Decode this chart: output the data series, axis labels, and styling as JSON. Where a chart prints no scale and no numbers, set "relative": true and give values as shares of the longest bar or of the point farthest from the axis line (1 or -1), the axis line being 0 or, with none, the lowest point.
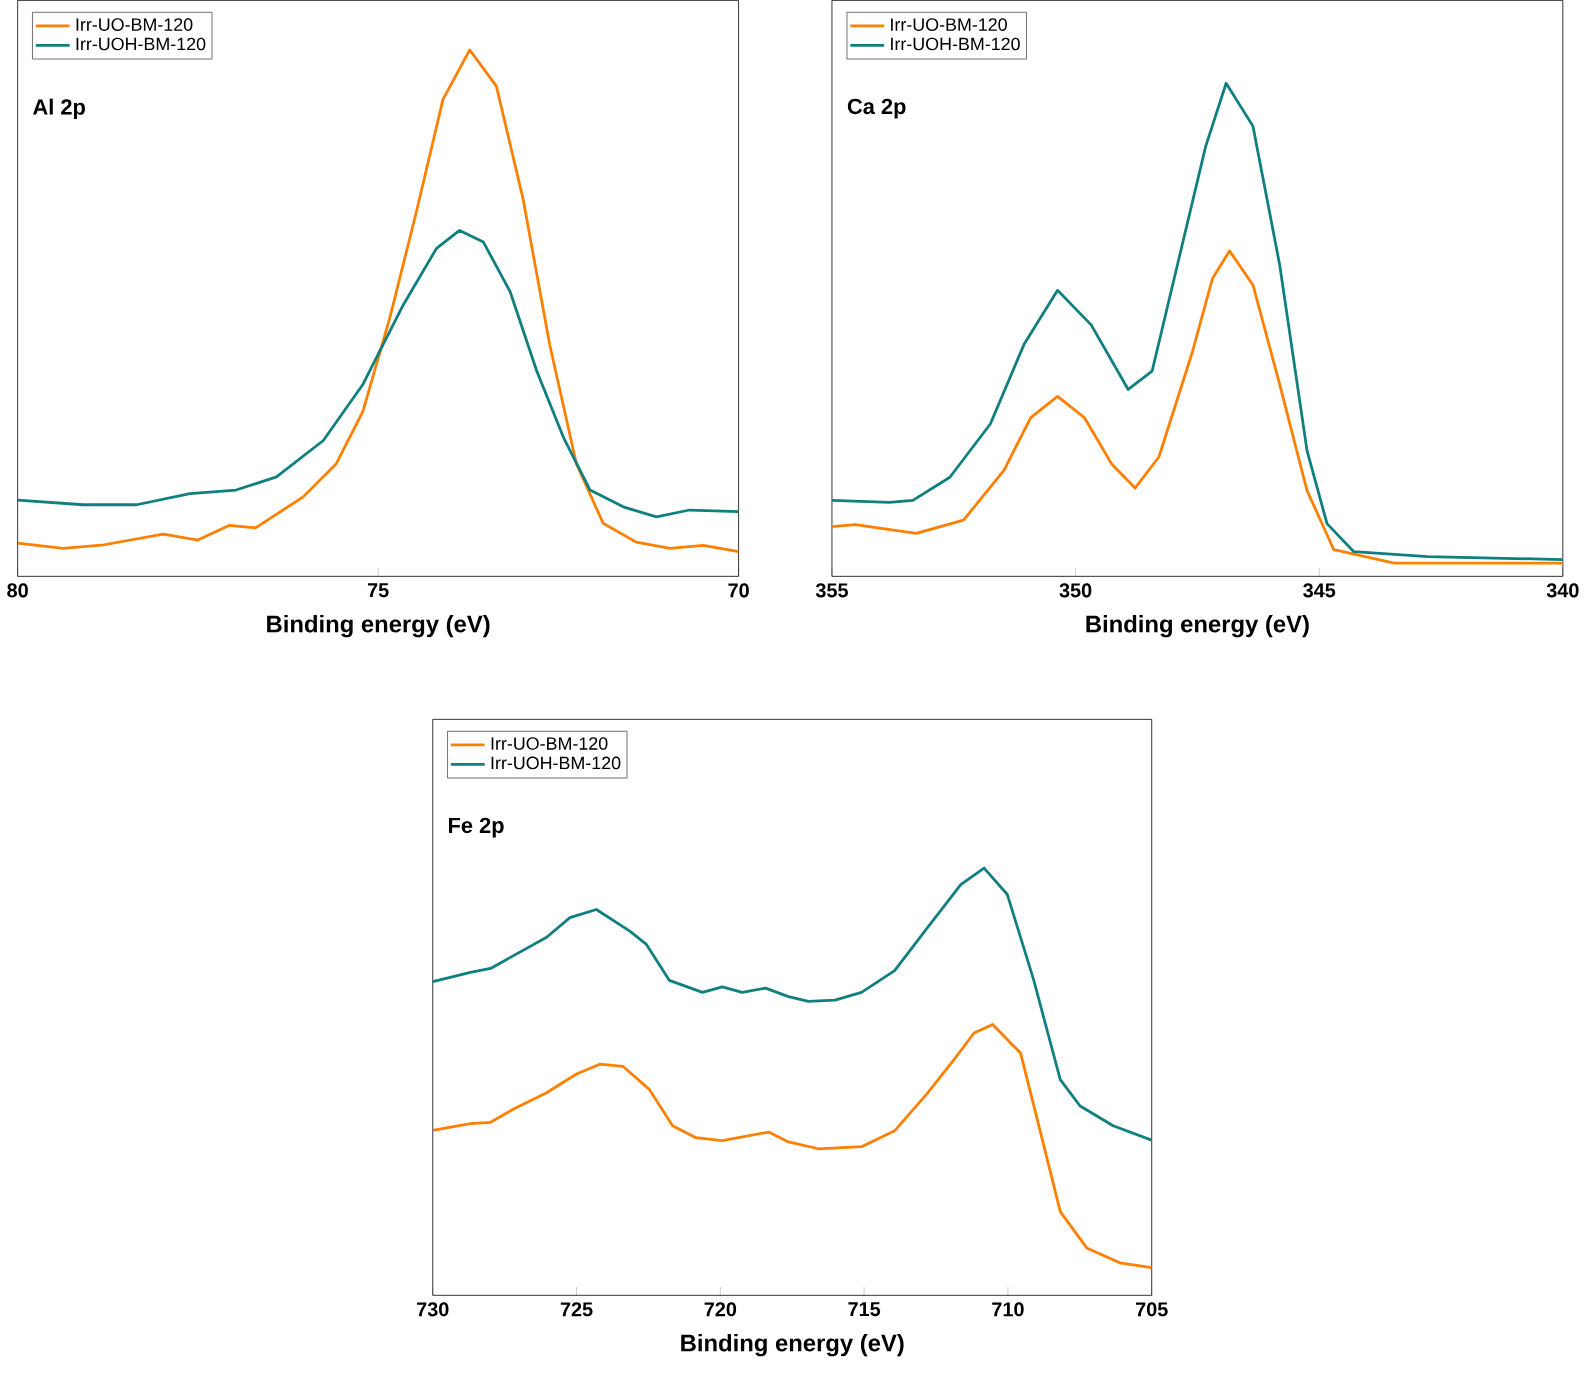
{
  "chart_data": [
    {
      "type": "line",
      "title": "Al 2p",
      "xlabel": "Binding energy (eV)",
      "xlim": [
        80,
        70
      ],
      "xticks": [
        80,
        75,
        70
      ],
      "relative": true,
      "legend": "top left",
      "grid": false,
      "marker": "none",
      "line_style": "solid",
      "series": [
        {
          "name": "Irr-UO-BM-120",
          "color": "#ff8000",
          "x": [
            80,
            79.37,
            78.8,
            77.98,
            77.5,
            77.06,
            76.7,
            76.04,
            75.58,
            75.21,
            74.84,
            74.47,
            74.1,
            73.73,
            73.36,
            72.99,
            72.62,
            72.25,
            71.88,
            71.42,
            70.95,
            70.49,
            70
          ],
          "values": [
            0.063,
            0.053,
            0.06,
            0.08,
            0.069,
            0.097,
            0.092,
            0.151,
            0.214,
            0.314,
            0.49,
            0.692,
            0.906,
            1.0,
            0.931,
            0.717,
            0.44,
            0.214,
            0.101,
            0.065,
            0.053,
            0.059,
            0.047
          ]
        },
        {
          "name": "Irr-UOH-BM-120",
          "color": "#0f7f7f",
          "x": [
            80,
            79.09,
            78.35,
            77.61,
            76.97,
            76.41,
            75.76,
            75.21,
            74.65,
            74.19,
            73.87,
            73.54,
            73.17,
            72.8,
            72.43,
            72.06,
            71.6,
            71.14,
            70.68,
            70
          ],
          "values": [
            0.145,
            0.136,
            0.136,
            0.157,
            0.164,
            0.189,
            0.258,
            0.365,
            0.516,
            0.623,
            0.657,
            0.635,
            0.541,
            0.39,
            0.264,
            0.164,
            0.132,
            0.113,
            0.126,
            0.123
          ]
        }
      ]
    },
    {
      "type": "line",
      "title": "Ca 2p",
      "xlabel": "Binding energy (eV)",
      "xlim": [
        355,
        340
      ],
      "xticks": [
        355,
        350,
        345,
        340
      ],
      "relative": true,
      "legend": "top left",
      "grid": false,
      "marker": "none",
      "line_style": "solid",
      "series": [
        {
          "name": "Irr-UO-BM-120",
          "color": "#ff8000",
          "x": [
            355,
            354.52,
            353.27,
            352.3,
            351.47,
            350.92,
            350.37,
            349.82,
            349.26,
            348.78,
            348.29,
            347.6,
            347.19,
            346.84,
            346.36,
            345.81,
            345.25,
            344.7,
            343.46,
            340
          ],
          "values": [
            0.101,
            0.105,
            0.087,
            0.114,
            0.215,
            0.322,
            0.365,
            0.322,
            0.228,
            0.179,
            0.242,
            0.456,
            0.604,
            0.66,
            0.591,
            0.389,
            0.174,
            0.054,
            0.027,
            0.027
          ]
        },
        {
          "name": "Irr-UOH-BM-120",
          "color": "#0f7f7f",
          "x": [
            355,
            353.82,
            353.34,
            352.58,
            351.75,
            351.06,
            350.37,
            349.68,
            348.92,
            348.43,
            347.88,
            347.33,
            346.91,
            346.36,
            345.81,
            345.25,
            344.84,
            344.29,
            342.77,
            340
          ],
          "values": [
            0.154,
            0.15,
            0.154,
            0.201,
            0.309,
            0.47,
            0.58,
            0.51,
            0.379,
            0.416,
            0.644,
            0.872,
            1.0,
            0.913,
            0.631,
            0.255,
            0.107,
            0.05,
            0.04,
            0.034
          ]
        }
      ]
    },
    {
      "type": "line",
      "title": "Fe 2p",
      "xlabel": "Binding energy (eV)",
      "xlim": [
        730,
        705
      ],
      "xticks": [
        730,
        725,
        720,
        715,
        710,
        705
      ],
      "relative": true,
      "legend": "top left",
      "grid": false,
      "marker": "none",
      "line_style": "solid",
      "series": [
        {
          "name": "Irr-UO-BM-120",
          "color": "#ff8000",
          "x": [
            730,
            728.69,
            727.99,
            727.19,
            726.04,
            725,
            724.19,
            723.39,
            722.47,
            721.66,
            720.85,
            719.93,
            718.32,
            717.63,
            716.59,
            715.09,
            713.94,
            712.79,
            711.87,
            711.18,
            710.53,
            709.56,
            708.87,
            708.18,
            707.26,
            706.11,
            705
          ],
          "values": [
            0.386,
            0.402,
            0.405,
            0.436,
            0.474,
            0.518,
            0.541,
            0.536,
            0.482,
            0.397,
            0.369,
            0.362,
            0.382,
            0.359,
            0.343,
            0.348,
            0.385,
            0.474,
            0.552,
            0.614,
            0.634,
            0.567,
            0.382,
            0.196,
            0.111,
            0.076,
            0.065
          ]
        },
        {
          "name": "Irr-UOH-BM-120",
          "color": "#0f7f7f",
          "x": [
            730,
            728.69,
            727.99,
            727.3,
            726.04,
            725.23,
            724.31,
            723.16,
            722.58,
            721.77,
            720.62,
            719.93,
            719.24,
            718.43,
            717.63,
            716.94,
            716.01,
            715.09,
            713.94,
            712.79,
            711.64,
            710.83,
            710.02,
            709.1,
            708.18,
            707.49,
            706.34,
            705
          ],
          "values": [
            0.734,
            0.756,
            0.765,
            0.791,
            0.838,
            0.884,
            0.903,
            0.853,
            0.822,
            0.737,
            0.709,
            0.722,
            0.709,
            0.719,
            0.699,
            0.688,
            0.691,
            0.709,
            0.76,
            0.861,
            0.961,
            1.0,
            0.938,
            0.737,
            0.505,
            0.443,
            0.397,
            0.363
          ]
        }
      ]
    }
  ]
}
